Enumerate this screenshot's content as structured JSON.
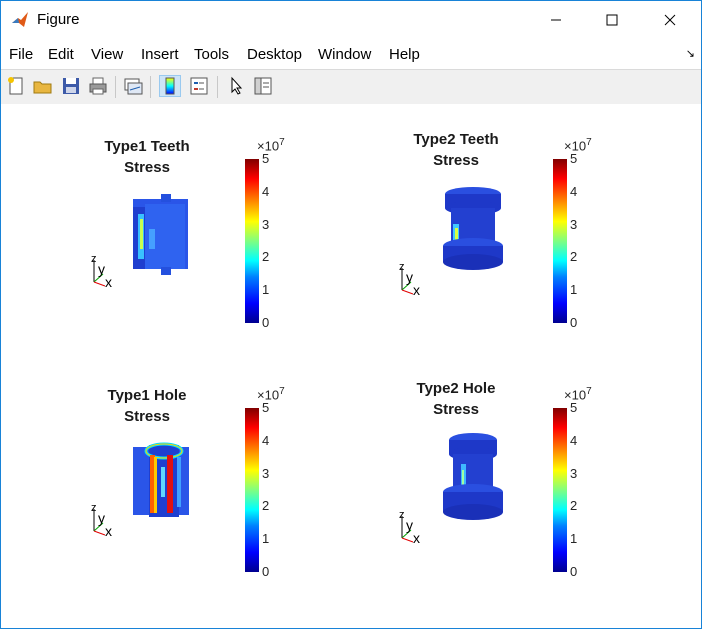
{
  "window": {
    "title": "Figure"
  },
  "menu": [
    "File",
    "Edit",
    "View",
    "Insert",
    "Tools",
    "Desktop",
    "Window",
    "Help"
  ],
  "toolbar": [
    "new-figure-icon",
    "open-file-icon",
    "save-icon",
    "print-icon",
    "link-plot-icon",
    "insert-colorbar-icon",
    "insert-legend-icon",
    "edit-plot-icon",
    "open-property-inspector-icon"
  ],
  "colorbar": {
    "ticks": [
      "5",
      "4",
      "3",
      "2",
      "1",
      "0"
    ],
    "exponent_base": "×10",
    "exponent_power": "7"
  },
  "plots": [
    {
      "title_line1": "Type1 Teeth",
      "title_line2": "Stress"
    },
    {
      "title_line1": "Type2 Teeth",
      "title_line2": "Stress"
    },
    {
      "title_line1": "Type1 Hole",
      "title_line2": "Stress"
    },
    {
      "title_line1": "Type2 Hole",
      "title_line2": "Stress"
    }
  ],
  "axes_labels": {
    "z": "z",
    "y": "y",
    "x": "x"
  },
  "colors": {
    "title_border": "#1883d7",
    "toolbar_bg": "#f0f0f0"
  }
}
